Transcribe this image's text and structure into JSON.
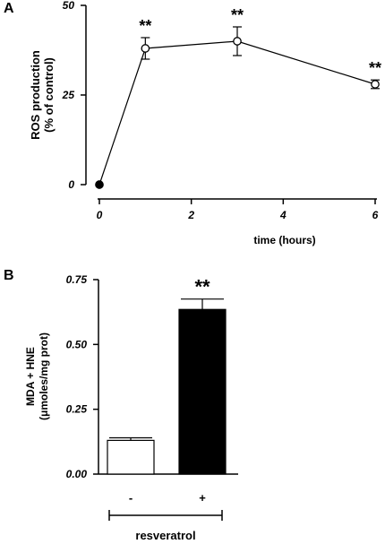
{
  "chart_data": [
    {
      "panel": "A",
      "type": "line",
      "ylabel_line1": "ROS production",
      "ylabel_line2": "(% of control)",
      "xlabel": "time (hours)",
      "xlim": [
        0,
        6
      ],
      "ylim": [
        0,
        50
      ],
      "xticks": [
        "0",
        "2",
        "4",
        "6"
      ],
      "yticks": [
        "0",
        "25",
        "50"
      ],
      "points": [
        {
          "x": 0,
          "y": 0,
          "err": 0,
          "filled": true,
          "sig": ""
        },
        {
          "x": 1,
          "y": 38,
          "err": 3,
          "filled": false,
          "sig": "**"
        },
        {
          "x": 3,
          "y": 40,
          "err": 4,
          "filled": false,
          "sig": "**"
        },
        {
          "x": 6,
          "y": 28,
          "err": 1.2,
          "filled": false,
          "sig": "**"
        }
      ]
    },
    {
      "panel": "B",
      "type": "bar",
      "ylabel_line1": "MDA + HNE",
      "ylabel_line2": "(μmoles/mg prot)",
      "categories": [
        "-",
        "+"
      ],
      "group_label": "resveratrol",
      "ylim": [
        0,
        0.75
      ],
      "yticks": [
        "0.00",
        "0.25",
        "0.50",
        "0.75"
      ],
      "bars": [
        {
          "category": "-",
          "value": 0.13,
          "err": 0.01,
          "color": "#ffffff",
          "sig": ""
        },
        {
          "category": "+",
          "value": 0.635,
          "err": 0.04,
          "color": "#000000",
          "sig": "**"
        }
      ]
    }
  ]
}
